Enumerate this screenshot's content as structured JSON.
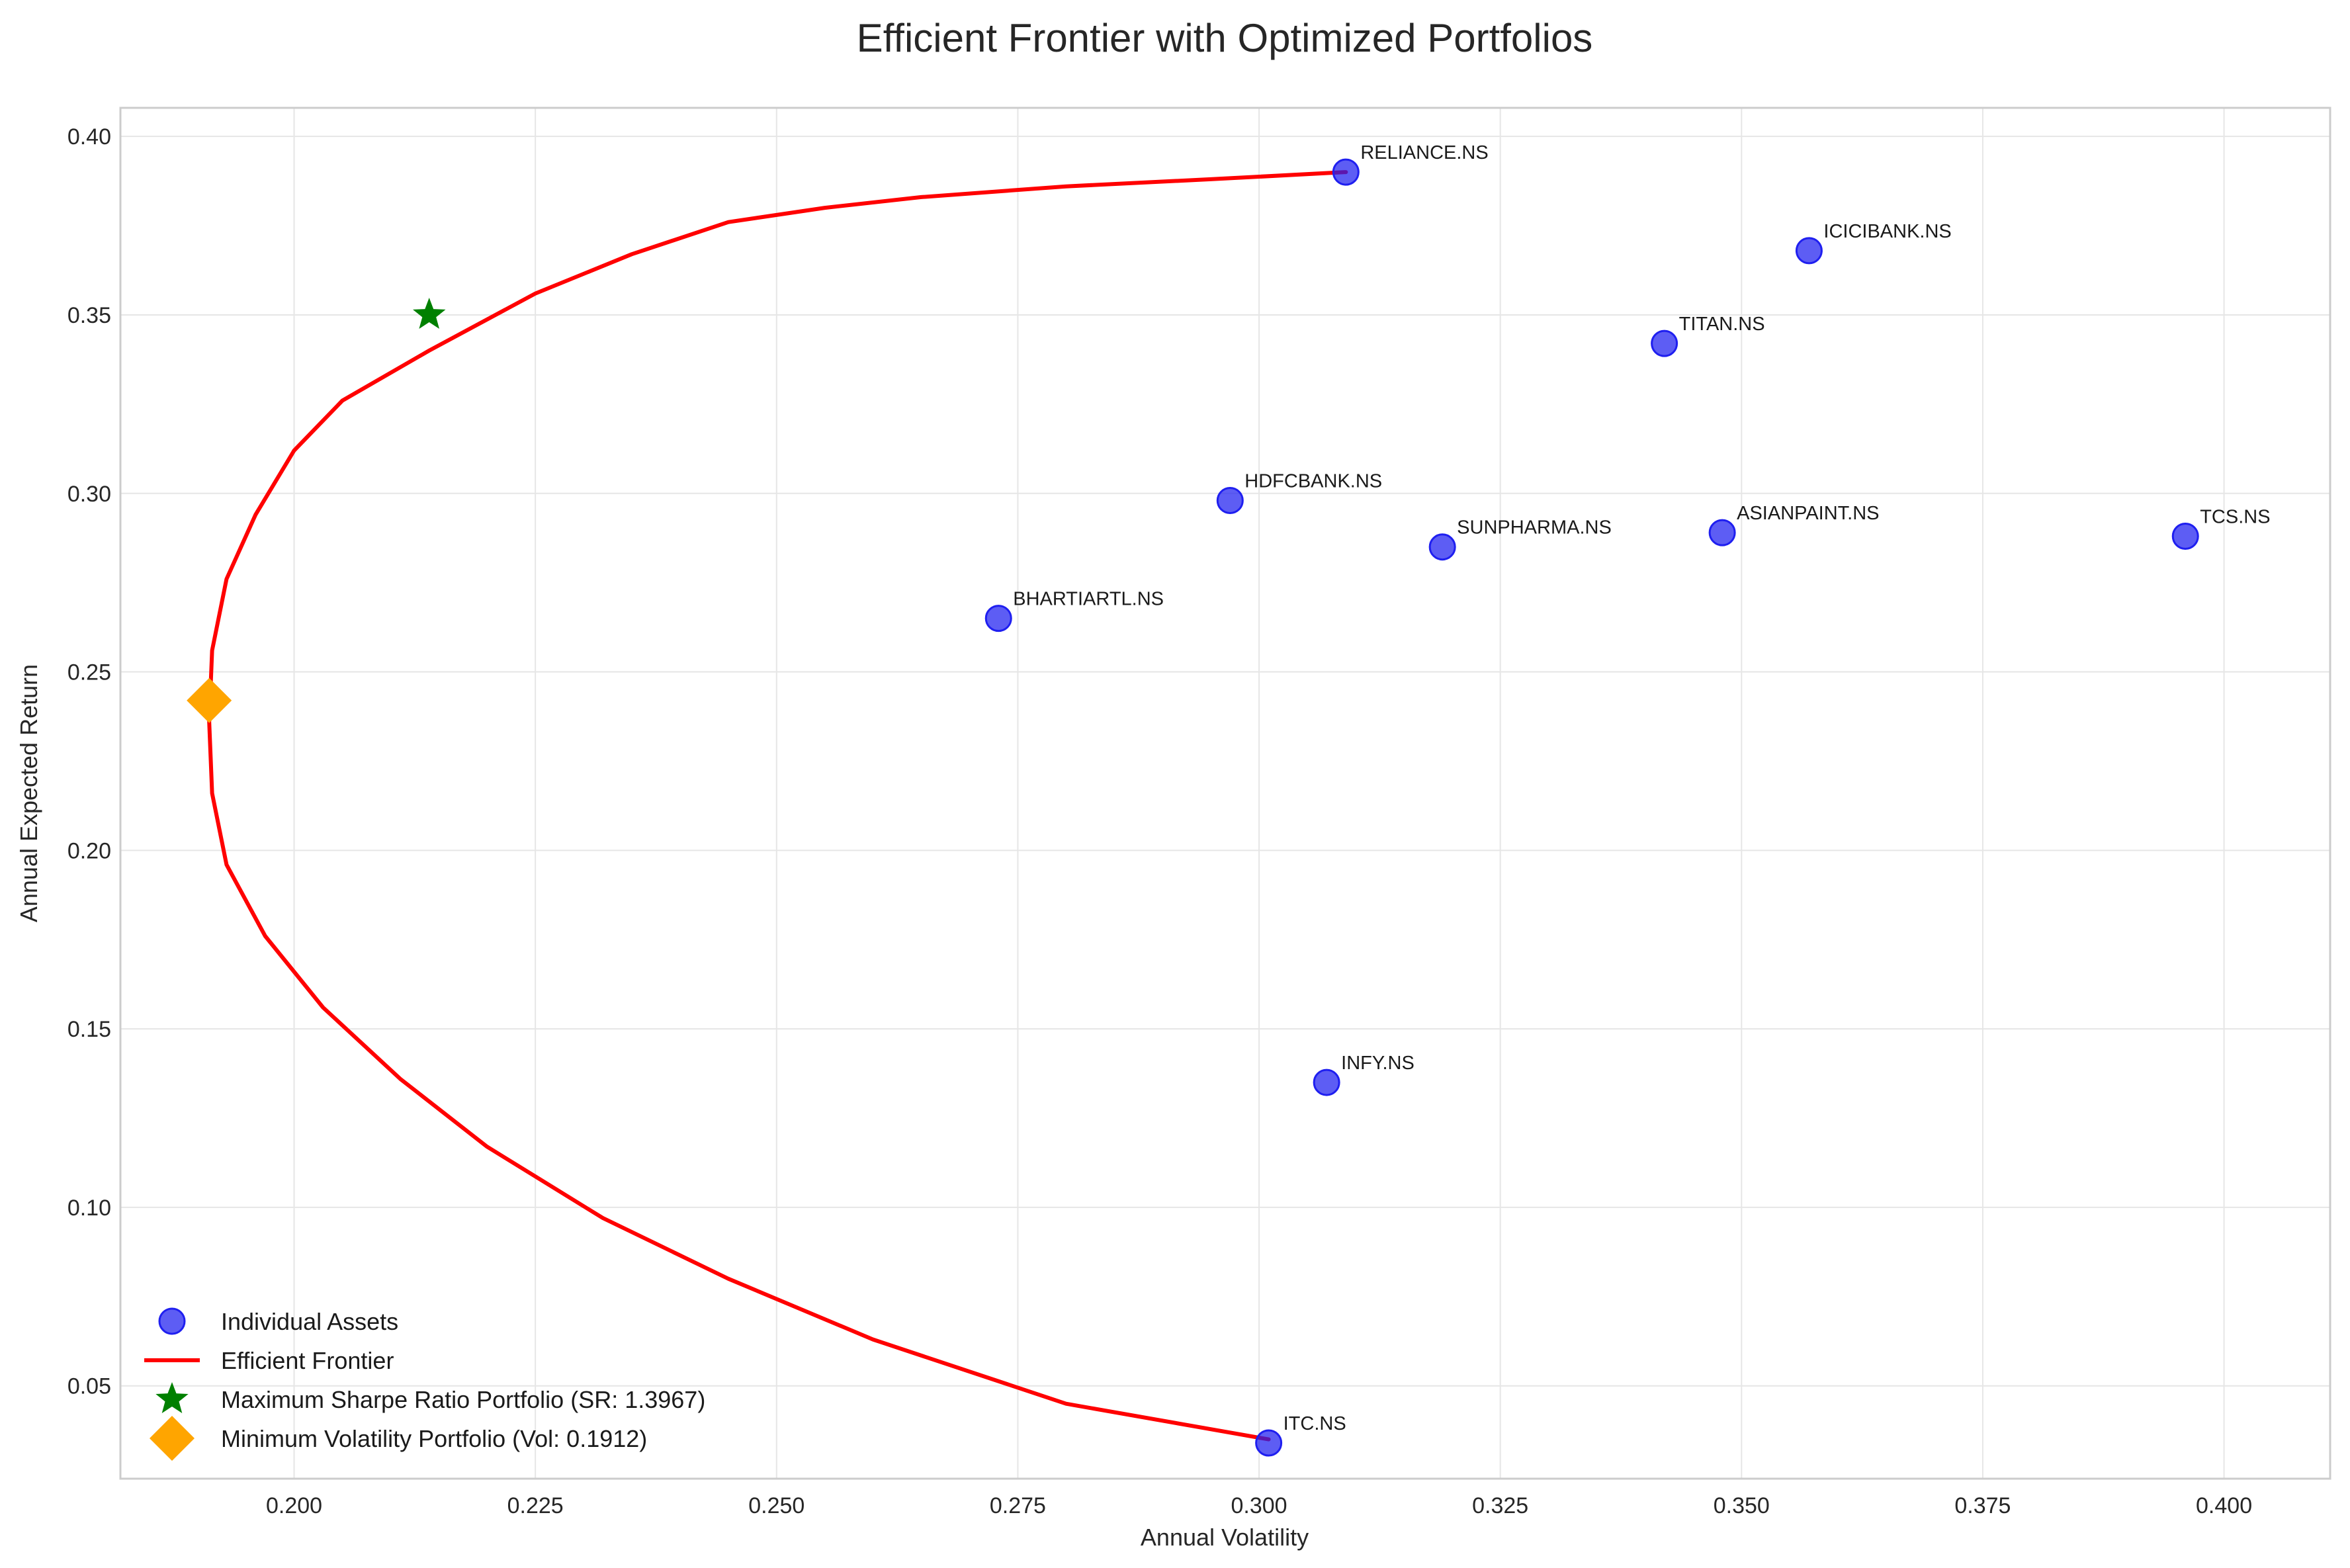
{
  "chart_data": {
    "type": "scatter",
    "title": "Efficient Frontier with Optimized Portfolios",
    "xlabel": "Annual Volatility",
    "ylabel": "Annual Expected Return",
    "xlim": [
      0.182,
      0.411
    ],
    "ylim": [
      0.024,
      0.408
    ],
    "xticks": [
      "0.200",
      "0.225",
      "0.250",
      "0.275",
      "0.300",
      "0.325",
      "0.350",
      "0.375",
      "0.400"
    ],
    "yticks": [
      "0.05",
      "0.10",
      "0.15",
      "0.20",
      "0.25",
      "0.30",
      "0.35",
      "0.40"
    ],
    "grid": true,
    "legend_position": "lower-left",
    "colors": {
      "assets": "#1f1ff0",
      "frontier": "#ff0000",
      "max_sharpe": "#008000",
      "min_vol": "#ffa500"
    },
    "assets": [
      {
        "name": "RELIANCE.NS",
        "x": 0.309,
        "y": 0.39
      },
      {
        "name": "ICICIBANK.NS",
        "x": 0.357,
        "y": 0.368
      },
      {
        "name": "TITAN.NS",
        "x": 0.342,
        "y": 0.342
      },
      {
        "name": "HDFCBANK.NS",
        "x": 0.297,
        "y": 0.298
      },
      {
        "name": "SUNPHARMA.NS",
        "x": 0.319,
        "y": 0.285
      },
      {
        "name": "ASIANPAINT.NS",
        "x": 0.348,
        "y": 0.289
      },
      {
        "name": "TCS.NS",
        "x": 0.396,
        "y": 0.288
      },
      {
        "name": "BHARTIARTL.NS",
        "x": 0.273,
        "y": 0.265
      },
      {
        "name": "INFY.NS",
        "x": 0.307,
        "y": 0.135
      },
      {
        "name": "ITC.NS",
        "x": 0.301,
        "y": 0.034
      }
    ],
    "frontier": [
      {
        "x": 0.301,
        "y": 0.035
      },
      {
        "x": 0.28,
        "y": 0.045
      },
      {
        "x": 0.26,
        "y": 0.063
      },
      {
        "x": 0.245,
        "y": 0.08
      },
      {
        "x": 0.232,
        "y": 0.097
      },
      {
        "x": 0.22,
        "y": 0.117
      },
      {
        "x": 0.211,
        "y": 0.136
      },
      {
        "x": 0.203,
        "y": 0.156
      },
      {
        "x": 0.197,
        "y": 0.176
      },
      {
        "x": 0.193,
        "y": 0.196
      },
      {
        "x": 0.1915,
        "y": 0.216
      },
      {
        "x": 0.1912,
        "y": 0.236
      },
      {
        "x": 0.1915,
        "y": 0.256
      },
      {
        "x": 0.193,
        "y": 0.276
      },
      {
        "x": 0.196,
        "y": 0.294
      },
      {
        "x": 0.2,
        "y": 0.312
      },
      {
        "x": 0.205,
        "y": 0.326
      },
      {
        "x": 0.214,
        "y": 0.34
      },
      {
        "x": 0.225,
        "y": 0.356
      },
      {
        "x": 0.235,
        "y": 0.367
      },
      {
        "x": 0.245,
        "y": 0.376
      },
      {
        "x": 0.255,
        "y": 0.38
      },
      {
        "x": 0.265,
        "y": 0.383
      },
      {
        "x": 0.28,
        "y": 0.386
      },
      {
        "x": 0.295,
        "y": 0.388
      },
      {
        "x": 0.309,
        "y": 0.39
      }
    ],
    "max_sharpe": {
      "x": 0.214,
      "y": 0.35
    },
    "min_vol": {
      "x": 0.1912,
      "y": 0.242
    },
    "legend": [
      {
        "key": "assets",
        "label": "Individual Assets"
      },
      {
        "key": "frontier",
        "label": "Efficient Frontier"
      },
      {
        "key": "max_sharpe",
        "label": "Maximum Sharpe Ratio Portfolio (SR: 1.3967)"
      },
      {
        "key": "min_vol",
        "label": "Minimum Volatility Portfolio (Vol: 0.1912)"
      }
    ]
  }
}
